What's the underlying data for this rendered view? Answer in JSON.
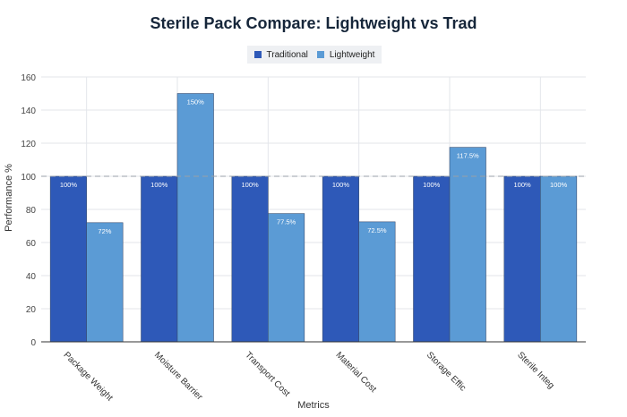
{
  "chart_data": {
    "type": "bar",
    "title": "Sterile Pack Compare: Lightweight vs Trad",
    "xlabel": "Metrics",
    "ylabel": "Performance %",
    "ylim": [
      0,
      160
    ],
    "yticks": [
      "0",
      "20",
      "40",
      "60",
      "80",
      "100",
      "120",
      "140",
      "160"
    ],
    "categories": [
      "Package Weight",
      "Moisture Barrier",
      "Transport Cost",
      "Material Cost",
      "Storage Effic",
      "Sterile Integ"
    ],
    "series": [
      {
        "name": "Traditional",
        "color": "#2e59b8",
        "values": [
          100,
          100,
          100,
          100,
          100,
          100
        ],
        "labels": [
          "100%",
          "100%",
          "100%",
          "100%",
          "100%",
          "100%"
        ]
      },
      {
        "name": "Lightweight",
        "color": "#5b9bd5",
        "values": [
          72,
          150,
          77.5,
          72.5,
          117.5,
          100
        ],
        "labels": [
          "72%",
          "150%",
          "77.5%",
          "72.5%",
          "117.5%",
          "100%"
        ]
      }
    ],
    "reference_line": 100,
    "grid": true,
    "legend_position": "top-center"
  }
}
